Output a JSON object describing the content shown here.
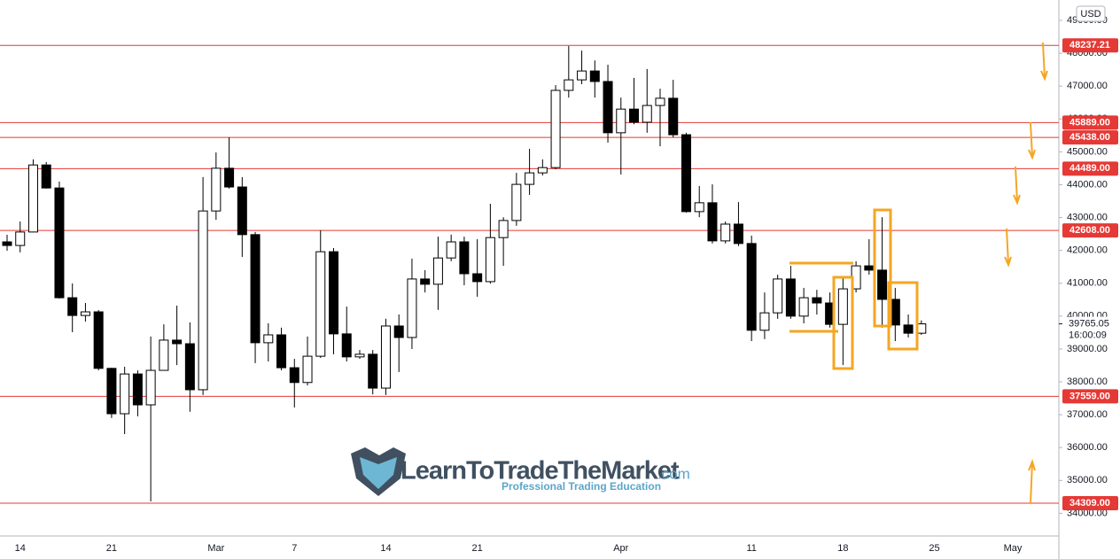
{
  "chart_data": {
    "type": "candlestick",
    "currency": "USD",
    "countdown": "16:00:09",
    "up_color": "#ffffff",
    "down_color": "#000000",
    "level_color": "#e53935",
    "grid": false,
    "watermark": {
      "brand": "LearnToTradeTheMarket",
      "domain": ".com",
      "tagline": "Professional Trading Education"
    },
    "categories": [
      null,
      "14",
      null,
      null,
      null,
      null,
      null,
      null,
      "21",
      null,
      null,
      null,
      null,
      null,
      null,
      null,
      "Mar",
      null,
      null,
      null,
      null,
      null,
      "7",
      null,
      null,
      null,
      null,
      null,
      null,
      "14",
      null,
      null,
      null,
      null,
      null,
      null,
      "21",
      null,
      null,
      null,
      null,
      null,
      null,
      null,
      null,
      null,
      null,
      "Apr",
      null,
      null,
      null,
      null,
      null,
      null,
      null,
      null,
      null,
      "11",
      null,
      null,
      null,
      null,
      null,
      null,
      "18",
      null,
      null,
      null,
      null,
      null,
      null,
      "25",
      null,
      null,
      null,
      null,
      null,
      "May"
    ],
    "open": [
      42260,
      42150,
      42560,
      44600,
      43900,
      40560,
      40020,
      40130,
      38410,
      37030,
      38240,
      37300,
      38350,
      39270,
      39160,
      37760,
      43200,
      44500,
      43930,
      42480,
      39190,
      39430,
      38430,
      37980,
      38780,
      41960,
      39460,
      38760,
      38840,
      37810,
      39700,
      39350,
      41130,
      40970,
      41770,
      42260,
      41290,
      41050,
      42390,
      42910,
      44010,
      44360,
      44520,
      46870,
      47190,
      47460,
      47140,
      45580,
      46300,
      45900,
      46410,
      46630,
      45520,
      43180,
      43450,
      42290,
      42800,
      42210,
      39570,
      40100,
      41130,
      40000,
      40560,
      40400,
      39750,
      40830,
      41530,
      41400,
      40510,
      39730,
      39480,
      null,
      null,
      null,
      null,
      null,
      null,
      null
    ],
    "high": [
      42475,
      42880,
      44770,
      44690,
      44092,
      40993,
      40400,
      40185,
      38430,
      38460,
      38350,
      39380,
      39750,
      40320,
      39810,
      44230,
      44980,
      45440,
      44230,
      42560,
      39780,
      39650,
      38700,
      39380,
      42610,
      42070,
      40290,
      38970,
      38970,
      39920,
      40050,
      41750,
      41400,
      42420,
      42480,
      42420,
      42340,
      43420,
      43010,
      44360,
      45090,
      44770,
      47030,
      48220,
      48080,
      47780,
      47650,
      46650,
      47250,
      47520,
      46920,
      47190,
      45580,
      43960,
      44010,
      42880,
      43470,
      42450,
      40720,
      41260,
      41530,
      40860,
      40800,
      40720,
      41160,
      41670,
      42340,
      43010,
      40860,
      40050,
      39870,
      null,
      null,
      null,
      null,
      null,
      null,
      null
    ],
    "low": [
      41990,
      41940,
      42550,
      43877,
      40535,
      39511,
      39835,
      38352,
      36900,
      36410,
      36950,
      34360,
      38350,
      38510,
      37090,
      37600,
      42930,
      43880,
      41800,
      38570,
      38620,
      38350,
      37220,
      37890,
      38730,
      38840,
      38620,
      38700,
      37620,
      37600,
      38300,
      39000,
      40720,
      40190,
      41670,
      40940,
      40590,
      40990,
      41530,
      42750,
      43690,
      44280,
      44470,
      46650,
      47060,
      46650,
      45280,
      44310,
      45840,
      45580,
      45170,
      45440,
      43150,
      43010,
      42210,
      42210,
      42130,
      39240,
      39300,
      39920,
      39920,
      39780,
      40050,
      39650,
      38510,
      40720,
      41260,
      39650,
      39240,
      39350,
      39430,
      null,
      null,
      null,
      null,
      null,
      null,
      null
    ],
    "close": [
      42150,
      42560,
      44600,
      43900,
      40560,
      40020,
      40130,
      38410,
      37030,
      38240,
      37300,
      38350,
      39270,
      39160,
      37760,
      43200,
      44500,
      43930,
      42480,
      39190,
      39430,
      38430,
      37980,
      38780,
      41960,
      39460,
      38760,
      38840,
      37810,
      39700,
      39350,
      41130,
      40970,
      41770,
      42260,
      41290,
      41050,
      42390,
      42910,
      44010,
      44360,
      44520,
      46870,
      47190,
      47460,
      47140,
      45580,
      46300,
      45900,
      46410,
      46630,
      45520,
      43180,
      43450,
      42290,
      42800,
      42210,
      39570,
      40100,
      41130,
      40000,
      40560,
      40400,
      39750,
      40830,
      41530,
      41400,
      40510,
      39730,
      39480,
      39765.05,
      null,
      null,
      null,
      null,
      null,
      null,
      null
    ],
    "last_price": 39765.05,
    "levels": [
      {
        "value": 48237.21,
        "label": "48237.21"
      },
      {
        "value": 45889,
        "label": "45889.00"
      },
      {
        "value": 45438,
        "label": "45438.00"
      },
      {
        "value": 44489,
        "label": "44489.00"
      },
      {
        "value": 42608,
        "label": "42608.00"
      },
      {
        "value": 37559,
        "label": "37559.00"
      },
      {
        "value": 34309,
        "label": "34309.00"
      }
    ],
    "ylim": [
      33310,
      49620
    ],
    "yticks": [
      {
        "value": 34000,
        "label": "34000.00"
      },
      {
        "value": 35000,
        "label": "35000.00"
      },
      {
        "value": 36000,
        "label": "36000.00"
      },
      {
        "value": 37000,
        "label": "37000.00"
      },
      {
        "value": 38000,
        "label": "38000.00"
      },
      {
        "value": 39000,
        "label": "39000.00"
      },
      {
        "value": 40000,
        "label": "40000.00"
      },
      {
        "value": 41000,
        "label": "41000.00"
      },
      {
        "value": 42000,
        "label": "42000.00"
      },
      {
        "value": 43000,
        "label": "43000.00"
      },
      {
        "value": 44000,
        "label": "44000.00"
      },
      {
        "value": 45000,
        "label": "45000.00"
      },
      {
        "value": 46000,
        "label": "46000.00"
      },
      {
        "value": 47000,
        "label": "47000.00"
      },
      {
        "value": 48000,
        "label": "48000.00"
      },
      {
        "value": 49000,
        "label": "49000.00"
      }
    ]
  }
}
